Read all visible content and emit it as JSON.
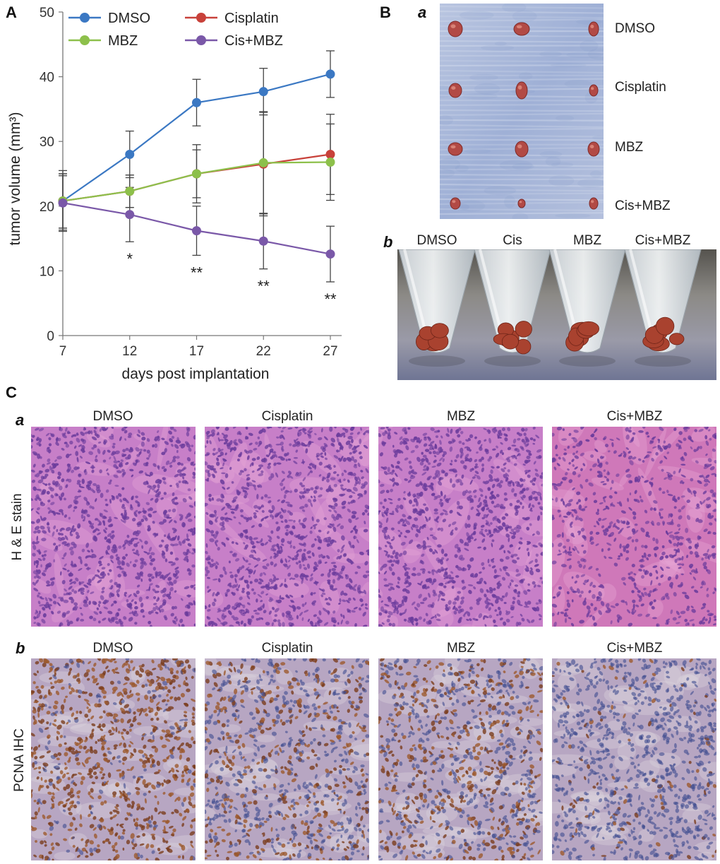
{
  "panels": {
    "A": "A",
    "B": "B",
    "C": "C",
    "Ba": "a",
    "Bb": "b",
    "Ca": "a",
    "Cb": "b"
  },
  "chart_data": {
    "type": "line",
    "x": [
      7,
      12,
      17,
      22,
      27
    ],
    "xlabel": "days post implantation",
    "ylabel": "tumor volume (mm³)",
    "xticks": [
      "7",
      "12",
      "17",
      "22",
      "27"
    ],
    "yticks": [
      0,
      10,
      20,
      30,
      40,
      50
    ],
    "ylim": [
      0,
      50
    ],
    "legend_position": "top-left",
    "grid": false,
    "series": [
      {
        "name": "DMSO",
        "color": "#3b78c3",
        "values": [
          20.8,
          28.0,
          36.0,
          37.7,
          40.4
        ],
        "errors": [
          4.2,
          3.6,
          3.6,
          3.6,
          3.6
        ]
      },
      {
        "name": "Cisplatin",
        "color": "#c8413a",
        "values": [
          20.8,
          22.3,
          25.0,
          26.5,
          28.0
        ],
        "errors": [
          4.2,
          2.5,
          3.7,
          8.0,
          6.2
        ]
      },
      {
        "name": "MBZ",
        "color": "#8dc04b",
        "values": [
          20.8,
          22.3,
          25.0,
          26.7,
          26.8
        ],
        "errors": [
          4.7,
          2.5,
          4.5,
          7.9,
          5.9
        ]
      },
      {
        "name": "Cis+MBZ",
        "color": "#7a58a8",
        "values": [
          20.5,
          18.7,
          16.2,
          14.6,
          12.6
        ],
        "errors": [
          4.2,
          4.2,
          3.8,
          4.3,
          4.3
        ]
      }
    ],
    "annotations": [
      {
        "x": 12,
        "text": "*"
      },
      {
        "x": 17,
        "text": "**"
      },
      {
        "x": 22,
        "text": "**"
      },
      {
        "x": 27,
        "text": "**"
      }
    ]
  },
  "panelB": {
    "a_labels": [
      "DMSO",
      "Cisplatin",
      "MBZ",
      "Cis+MBZ"
    ],
    "b_labels": [
      "DMSO",
      "Cis",
      "MBZ",
      "Cis+MBZ"
    ]
  },
  "panelC": {
    "a_row_label": "H & E stain",
    "b_row_label": "PCNA IHC",
    "column_labels": [
      "DMSO",
      "Cisplatin",
      "MBZ",
      "Cis+MBZ"
    ],
    "colors": {
      "he_base": "#c77fc8",
      "he_dark": "#6b3c9c",
      "ihc_base": "#b7a6c2",
      "ihc_dark": "#7a3d1e"
    }
  }
}
